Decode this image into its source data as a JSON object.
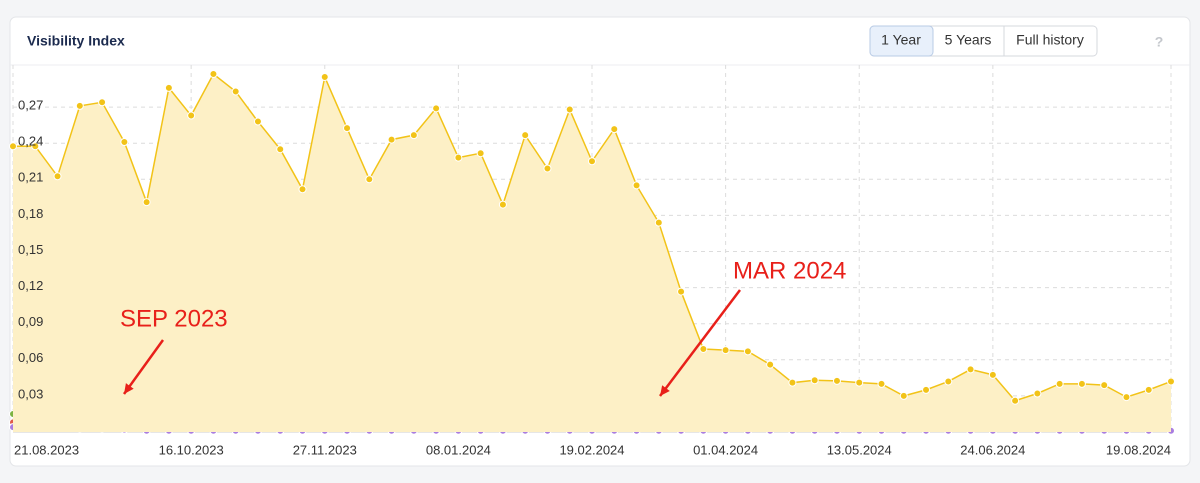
{
  "controls": {
    "buttons": [
      "1 Year",
      "5 Years",
      "Full history"
    ],
    "help": "?"
  },
  "chart_data": {
    "type": "line",
    "title": "Visibility Index",
    "categories": [
      "21.08.2023",
      null,
      null,
      null,
      null,
      null,
      null,
      null,
      "16.10.2023",
      null,
      null,
      null,
      null,
      null,
      "27.11.2023",
      null,
      null,
      null,
      null,
      null,
      "08.01.2024",
      null,
      null,
      null,
      null,
      null,
      "19.02.2024",
      null,
      null,
      null,
      null,
      null,
      "01.04.2024",
      null,
      null,
      null,
      null,
      null,
      "13.05.2024",
      null,
      null,
      null,
      null,
      null,
      "24.06.2024",
      null,
      null,
      null,
      null,
      null,
      null,
      null,
      "19.08.2024"
    ],
    "ylim": [
      0,
      0.305
    ],
    "yticks": [
      {
        "value": 0.03,
        "label": "0,03"
      },
      {
        "value": 0.06,
        "label": "0,06"
      },
      {
        "value": 0.09,
        "label": "0,09"
      },
      {
        "value": 0.12,
        "label": "0,12"
      },
      {
        "value": 0.15,
        "label": "0,15"
      },
      {
        "value": 0.18,
        "label": "0,18"
      },
      {
        "value": 0.21,
        "label": "0,21"
      },
      {
        "value": 0.24,
        "label": "0,24"
      },
      {
        "value": 0.27,
        "label": "0,27"
      }
    ],
    "grid": true,
    "series": [
      {
        "color": "#f2c318",
        "fill": "#fdf0c6",
        "values": [
          0.2375,
          0.2375,
          0.2125,
          0.271,
          0.274,
          0.241,
          0.191,
          0.286,
          0.263,
          0.2975,
          0.283,
          0.258,
          0.235,
          0.2017,
          0.295,
          0.2525,
          0.21,
          0.243,
          0.2467,
          0.269,
          0.228,
          0.2317,
          0.189,
          0.2467,
          0.219,
          0.268,
          0.225,
          0.2517,
          0.205,
          0.174,
          0.1167,
          0.069,
          0.068,
          0.067,
          0.056,
          0.041,
          0.043,
          0.0425,
          0.041,
          0.04,
          0.03,
          0.035,
          0.042,
          0.052,
          0.0475,
          0.026,
          0.032,
          0.04,
          0.04,
          0.039,
          0.029,
          0.035,
          0.042
        ]
      },
      {
        "color": "#7cb342",
        "values": [
          0.015,
          0.02,
          0.02,
          0.021,
          0.018,
          0.007,
          0.005,
          0.004,
          0.004,
          0.004,
          0.004,
          0.004,
          0.004,
          0.004,
          0.004,
          0.004,
          0.004,
          0.004,
          0.004,
          0.004,
          0.004,
          0.004,
          0.004,
          0.004,
          0.004,
          0.004,
          0.004,
          0.004,
          0.003,
          0.002,
          0.001,
          0.001,
          0.001,
          0.001,
          0.001,
          0.001,
          0.001,
          0.001,
          0.001,
          0.001,
          0.001,
          0.001,
          0.001,
          0.001,
          0.001,
          0.001,
          0.001,
          0.001,
          0.001,
          0.001,
          0.001,
          0.001,
          0.001
        ]
      },
      {
        "color": "#6b6b1e",
        "values": [
          0.006,
          0.006,
          0.006,
          0.005,
          0.005,
          0.005,
          0.004,
          0.004,
          0.005,
          0.005,
          0.005,
          0.006,
          0.007,
          0.005,
          0.005,
          0.005,
          0.004,
          0.005,
          0.005,
          0.004,
          0.005,
          0.008,
          0.006,
          0.005,
          0.004,
          0.005,
          0.004,
          0.004,
          0.004,
          0.003,
          0.002,
          0.001,
          0.001,
          0.001,
          0.001,
          0.001,
          0.001,
          0.001,
          0.001,
          0.001,
          0.001,
          0.001,
          0.001,
          0.001,
          0.001,
          0.001,
          0.001,
          0.001,
          0.001,
          0.001,
          0.001,
          0.001,
          0.001
        ]
      },
      {
        "color": "#e05a4a",
        "values": [
          0.008,
          0.01,
          0.016,
          0.012,
          0.01,
          0.009,
          0.003,
          0.002,
          0.002,
          0.002,
          0.002,
          0.002,
          0.002,
          0.002,
          0.002,
          0.002,
          0.002,
          0.002,
          0.002,
          0.002,
          0.002,
          0.002,
          0.002,
          0.002,
          0.002,
          0.002,
          0.002,
          0.002,
          0.002,
          0.002,
          0.001,
          0.001,
          0.001,
          0.001,
          0.001,
          0.001,
          0.001,
          0.001,
          0.001,
          0.001,
          0.001,
          0.001,
          0.001,
          0.001,
          0.001,
          0.001,
          0.001,
          0.001,
          0.001,
          0.001,
          0.005,
          0.001,
          0.001
        ]
      },
      {
        "color": "#a97de0",
        "values": [
          0.004,
          0.004,
          0.004,
          0.003,
          0.003,
          0.002,
          0.001,
          0.001,
          0.001,
          0.001,
          0.001,
          0.001,
          0.001,
          0.001,
          0.001,
          0.001,
          0.001,
          0.001,
          0.001,
          0.001,
          0.001,
          0.001,
          0.001,
          0.001,
          0.001,
          0.001,
          0.001,
          0.001,
          0.001,
          0.001,
          0.001,
          0.001,
          0.001,
          0.001,
          0.001,
          0.001,
          0.001,
          0.001,
          0.001,
          0.001,
          0.001,
          0.001,
          0.001,
          0.001,
          0.001,
          0.001,
          0.001,
          0.001,
          0.001,
          0.001,
          0.001,
          0.001,
          0.001
        ]
      }
    ],
    "annotations": [
      "SEP 2023",
      "MAR 2024"
    ]
  }
}
